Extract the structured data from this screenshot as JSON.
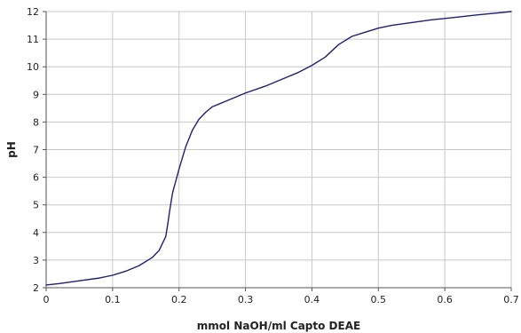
{
  "chart_data": {
    "type": "line",
    "title": "",
    "xlabel": "mmol NaOH/ml Capto DEAE",
    "ylabel": "pH",
    "xlim": [
      0,
      0.7
    ],
    "ylim": [
      2,
      12
    ],
    "x_ticks": [
      "0",
      "0.1",
      "0.2",
      "0.3",
      "0.4",
      "0.5",
      "0.6",
      "0.7"
    ],
    "y_ticks": [
      "2",
      "3",
      "4",
      "5",
      "6",
      "7",
      "8",
      "9",
      "10",
      "11",
      "12"
    ],
    "grid": true,
    "legend": "none",
    "colors": {
      "line": "#1f1f78",
      "grid": "#c8c8c8"
    },
    "series": [
      {
        "x": [
          0,
          0.02,
          0.05,
          0.08,
          0.1,
          0.12,
          0.14,
          0.16,
          0.17,
          0.175,
          0.18,
          0.183,
          0.186,
          0.188,
          0.19,
          0.192,
          0.195,
          0.2,
          0.205,
          0.21,
          0.22,
          0.23,
          0.24,
          0.25,
          0.26,
          0.28,
          0.3,
          0.33,
          0.36,
          0.38,
          0.4,
          0.42,
          0.44,
          0.46,
          0.48,
          0.5,
          0.52,
          0.55,
          0.58,
          0.6,
          0.62,
          0.65,
          0.68,
          0.7
        ],
        "y": [
          2.1,
          2.15,
          2.25,
          2.35,
          2.45,
          2.6,
          2.8,
          3.1,
          3.35,
          3.6,
          3.85,
          4.3,
          4.8,
          5.1,
          5.4,
          5.6,
          5.85,
          6.3,
          6.7,
          7.1,
          7.7,
          8.1,
          8.35,
          8.55,
          8.65,
          8.85,
          9.05,
          9.3,
          9.6,
          9.8,
          10.05,
          10.35,
          10.8,
          11.1,
          11.25,
          11.4,
          11.5,
          11.6,
          11.7,
          11.75,
          11.8,
          11.88,
          11.95,
          12.0
        ]
      }
    ]
  }
}
